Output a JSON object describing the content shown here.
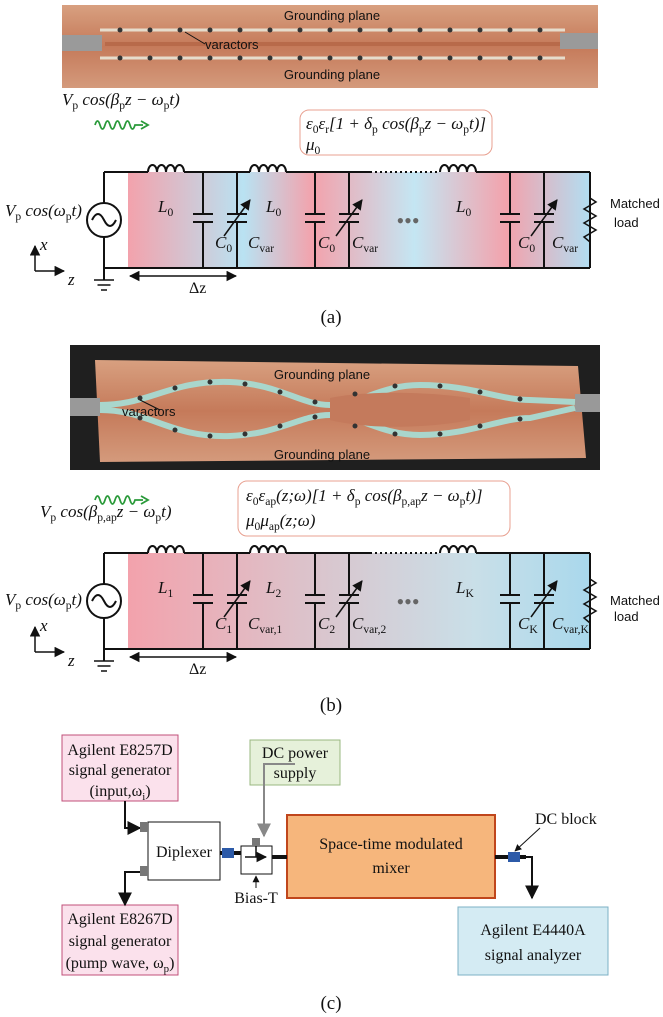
{
  "panel_a": {
    "photo": {
      "top_label": "Grounding plane",
      "varactor_label": "varactors",
      "bottom_label": "Grounding plane"
    },
    "pump": [
      "V",
      "p",
      " cos(β",
      "p",
      "z − ω",
      "p",
      "t)"
    ],
    "source": [
      "V",
      "p",
      " cos(ω",
      "p",
      "t)"
    ],
    "medium": [
      [
        "ε",
        "0",
        "ε",
        "r",
        "[1 + δ",
        "p",
        " cos(β",
        "p",
        "z − ω",
        "p",
        "t)]"
      ],
      [
        "μ",
        "0"
      ]
    ],
    "inductors": [
      [
        "L",
        "0"
      ],
      [
        "L",
        "0"
      ],
      [
        "L",
        "0"
      ]
    ],
    "capacitors": [
      [
        "C",
        "0"
      ],
      [
        "C",
        "var"
      ],
      [
        "C",
        "0"
      ],
      [
        "C",
        "var"
      ],
      [
        "C",
        "0"
      ],
      [
        "C",
        "var"
      ]
    ],
    "load": [
      "Matched",
      "load"
    ],
    "cell_length": "Δz",
    "axes": [
      "x",
      "z"
    ],
    "caption": "(a)"
  },
  "panel_b": {
    "photo": {
      "top_label": "Grounding plane",
      "varactor_label": "varactors",
      "bottom_label": "Grounding plane"
    },
    "pump": [
      "V",
      "p",
      " cos(β",
      "p,ap",
      "z − ω",
      "p",
      "t)"
    ],
    "source": [
      "V",
      "p",
      " cos(ω",
      "p",
      "t)"
    ],
    "medium": [
      [
        "ε",
        "0",
        "ε",
        "ap",
        "(z;ω)[1 + δ",
        "p",
        " cos(β",
        "p,ap",
        "z − ω",
        "p",
        "t)]"
      ],
      [
        "μ",
        "0",
        "μ",
        "ap",
        "(z;ω)"
      ]
    ],
    "inductors": [
      [
        "L",
        "1"
      ],
      [
        "L",
        "2"
      ],
      [
        "L",
        "K"
      ]
    ],
    "capacitors": [
      [
        "C",
        "1"
      ],
      [
        "C",
        "var,1"
      ],
      [
        "C",
        "2"
      ],
      [
        "C",
        "var,2"
      ],
      [
        "C",
        "K"
      ],
      [
        "C",
        "var,K"
      ]
    ],
    "load": [
      "Matched",
      "load"
    ],
    "cell_length": "Δz",
    "axes": [
      "x",
      "z"
    ],
    "caption": "(b)"
  },
  "panel_c": {
    "generator_input": [
      "Agilent E8257D",
      "signal generator",
      [
        "(input,ω",
        "i",
        ")"
      ]
    ],
    "generator_pump": [
      "Agilent E8267D",
      "signal generator",
      [
        "(pump wave, ω",
        "p",
        ")"
      ]
    ],
    "diplexer": "Diplexer",
    "dc_supply": [
      "DC power",
      "supply"
    ],
    "bias_t": "Bias-T",
    "mixer": [
      "Space-time modulated",
      "mixer"
    ],
    "dc_block": "DC block",
    "analyzer": [
      "Agilent E4440A",
      "signal analyzer"
    ],
    "caption": "(c)"
  }
}
